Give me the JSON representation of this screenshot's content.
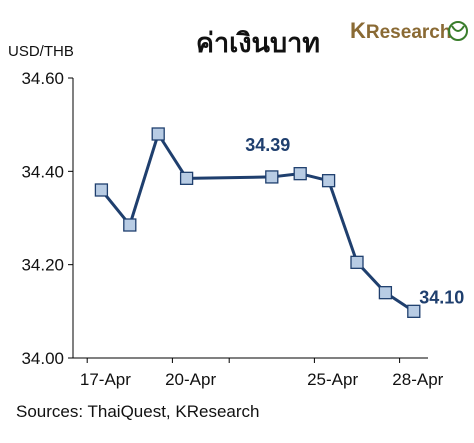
{
  "logo": {
    "k": "K",
    "rest": "Research"
  },
  "colors": {
    "line": "#1f3f6e",
    "marker_fill": "#b8cce4",
    "marker_stroke": "#1f3f6e",
    "axis": "#000000",
    "label": "#1f3f6e",
    "logo": "#8a6a34",
    "logo_leaf": "#3a7d2c"
  },
  "chart_data": {
    "type": "line",
    "title": "ค่าเงินบาท",
    "ylabel": "USD/THB",
    "ylim": [
      34.0,
      34.6
    ],
    "yticks": [
      "34.60",
      "34.40",
      "34.20",
      "34.00"
    ],
    "ytick_values": [
      34.6,
      34.4,
      34.2,
      34.0
    ],
    "xticks": [
      {
        "label": "17-Apr",
        "day": 17
      },
      {
        "label": "20-Apr",
        "day": 20
      },
      {
        "label": "25-Apr",
        "day": 25
      },
      {
        "label": "28-Apr",
        "day": 28
      }
    ],
    "series": [
      {
        "points": [
          {
            "day": 17,
            "value": 34.36
          },
          {
            "day": 18,
            "value": 34.285
          },
          {
            "day": 19,
            "value": 34.48
          },
          {
            "day": 20,
            "value": 34.385
          },
          {
            "day": 23,
            "value": 34.388
          },
          {
            "day": 24,
            "value": 34.395
          },
          {
            "day": 25,
            "value": 34.38
          },
          {
            "day": 26,
            "value": 34.205
          },
          {
            "day": 27,
            "value": 34.14
          },
          {
            "day": 28,
            "value": 34.1
          }
        ]
      }
    ],
    "data_labels": [
      {
        "text": "34.39",
        "day": 23
      },
      {
        "text": "34.10",
        "day": 28
      }
    ],
    "grid": false,
    "legend": "none",
    "source": "Sources: ThaiQuest, KResearch"
  }
}
